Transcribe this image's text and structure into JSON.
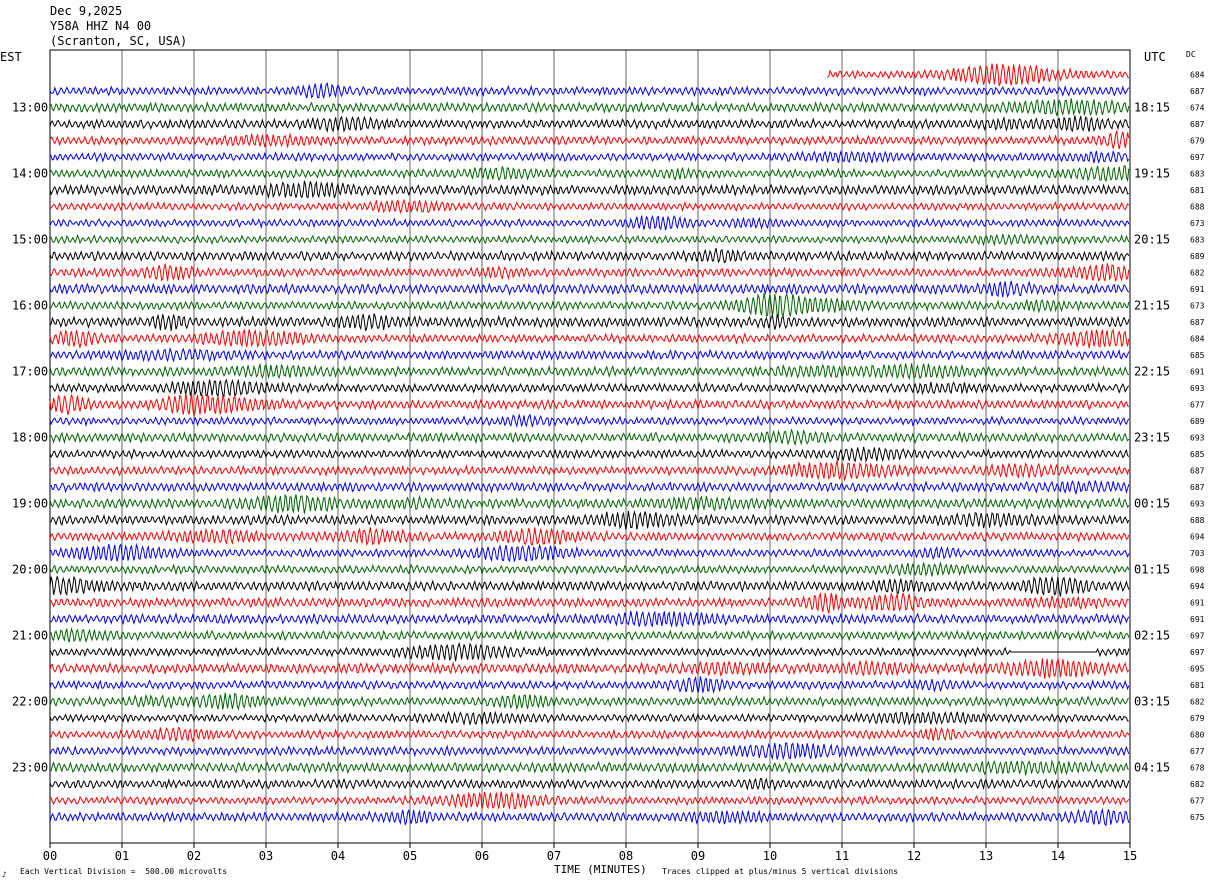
{
  "header": {
    "date": "Dec 9,2025",
    "station": "Y58A HHZ N4 00",
    "location": "(Scranton, SC, USA)"
  },
  "left_tz": "EST",
  "right_tz": "UTC",
  "dc_label": "DC",
  "footer": {
    "left_mark": "♪",
    "scale": "Each Vertical Division =  500.00 microvolts",
    "clip": "Traces clipped at plus/minus 5 vertical divisions"
  },
  "chart_data": {
    "type": "line",
    "title": "",
    "xlabel": "TIME (MINUTES)",
    "xlim": [
      0,
      15
    ],
    "x_ticks": [
      "00",
      "01",
      "02",
      "03",
      "04",
      "05",
      "06",
      "07",
      "08",
      "09",
      "10",
      "11",
      "12",
      "13",
      "14",
      "15"
    ],
    "est_labels": [
      "13:00",
      "14:00",
      "15:00",
      "16:00",
      "17:00",
      "18:00",
      "19:00",
      "20:00",
      "21:00",
      "22:00",
      "23:00"
    ],
    "utc_labels": [
      "18:15",
      "19:15",
      "20:15",
      "21:15",
      "22:15",
      "23:15",
      "00:15",
      "01:15",
      "02:15",
      "03:15",
      "04:15"
    ],
    "rows_per_hour": 4,
    "first_label_row": 2,
    "trace_colors": [
      "#000000",
      "#ff0000",
      "#0000ff",
      "#006400"
    ],
    "first_trace_color_index": 1,
    "dc_offsets": [
      684,
      687,
      674,
      687,
      679,
      697,
      683,
      681,
      688,
      673,
      683,
      689,
      682,
      691,
      673,
      687,
      684,
      685,
      691,
      693,
      677,
      689,
      693,
      685,
      687,
      687,
      693,
      688,
      694,
      703,
      698,
      694,
      691,
      691,
      697,
      697,
      695,
      681,
      682,
      679,
      680,
      677,
      678,
      682,
      677,
      675
    ],
    "partial_first_trace_start_min": 10.8,
    "flat_segment": {
      "row": 35,
      "from_min": 13.35,
      "to_min": 14.55
    },
    "grid": true
  },
  "colors": {
    "background": "#ffffff",
    "grid": "#000000"
  }
}
